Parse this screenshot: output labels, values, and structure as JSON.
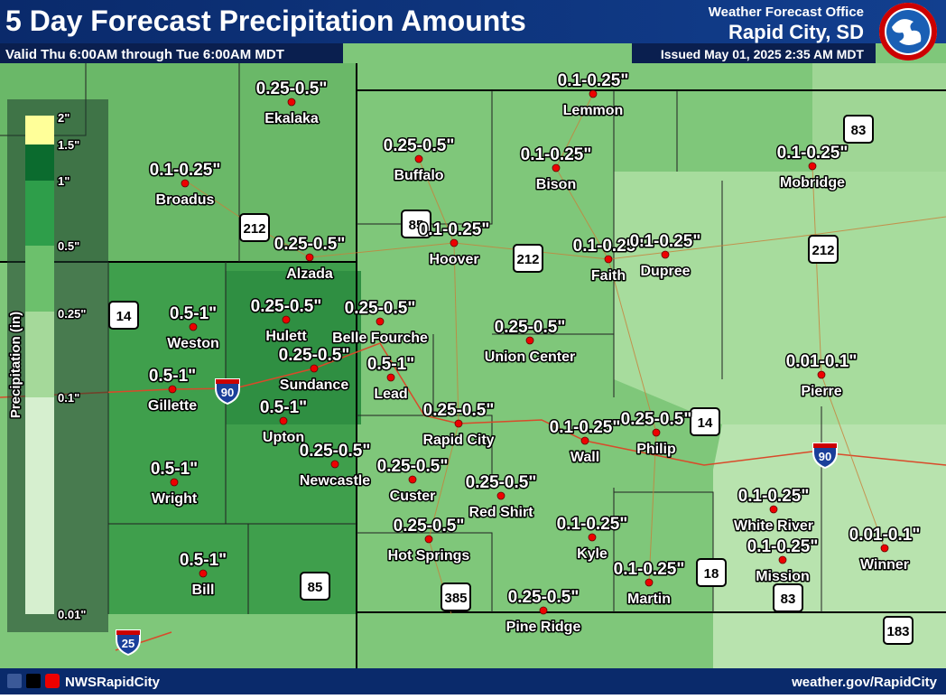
{
  "header": {
    "title": "5 Day Forecast Precipitation Amounts",
    "subtitle": "Valid Thu 6:00AM through Tue 6:00AM MDT",
    "office_line1": "Weather Forecast Office",
    "office_line2": "Rapid City, SD",
    "issued": "Issued May 01, 2025 2:35 AM MDT"
  },
  "legend": {
    "title": "Precipitation (in)",
    "labels": [
      "2\"",
      "1.5\"",
      "1\"",
      "0.5\"",
      "0.25\"",
      "0.1\"",
      "0.01\""
    ]
  },
  "cities": [
    {
      "name": "Ekalaka",
      "amount": "0.25-0.5\""
    },
    {
      "name": "Broadus",
      "amount": "0.1-0.25\""
    },
    {
      "name": "Alzada",
      "amount": "0.25-0.5\""
    },
    {
      "name": "Weston",
      "amount": "0.5-1\""
    },
    {
      "name": "Gillette",
      "amount": "0.5-1\""
    },
    {
      "name": "Hulett",
      "amount": "0.25-0.5\""
    },
    {
      "name": "Belle Fourche",
      "amount": "0.25-0.5\""
    },
    {
      "name": "Sundance",
      "amount": "0.25-0.5\""
    },
    {
      "name": "Lead",
      "amount": "0.5-1\""
    },
    {
      "name": "Upton",
      "amount": "0.5-1\""
    },
    {
      "name": "Newcastle",
      "amount": "0.25-0.5\""
    },
    {
      "name": "Wright",
      "amount": "0.5-1\""
    },
    {
      "name": "Bill",
      "amount": "0.5-1\""
    },
    {
      "name": "Buffalo",
      "amount": "0.25-0.5\""
    },
    {
      "name": "Hoover",
      "amount": "0.1-0.25\""
    },
    {
      "name": "Lemmon",
      "amount": "0.1-0.25\""
    },
    {
      "name": "Bison",
      "amount": "0.1-0.25\""
    },
    {
      "name": "Faith",
      "amount": "0.1-0.25\""
    },
    {
      "name": "Dupree",
      "amount": "0.1-0.25\""
    },
    {
      "name": "Mobridge",
      "amount": "0.1-0.25\""
    },
    {
      "name": "Union Center",
      "amount": "0.25-0.5\""
    },
    {
      "name": "Rapid City",
      "amount": "0.25-0.5\""
    },
    {
      "name": "Custer",
      "amount": "0.25-0.5\""
    },
    {
      "name": "Red Shirt",
      "amount": "0.25-0.5\""
    },
    {
      "name": "Wall",
      "amount": "0.1-0.25\""
    },
    {
      "name": "Philip",
      "amount": "0.25-0.5\""
    },
    {
      "name": "Pierre",
      "amount": "0.01-0.1\""
    },
    {
      "name": "White River",
      "amount": "0.1-0.25\""
    },
    {
      "name": "Mission",
      "amount": "0.1-0.25\""
    },
    {
      "name": "Winner",
      "amount": "0.01-0.1\""
    },
    {
      "name": "Kyle",
      "amount": "0.1-0.25\""
    },
    {
      "name": "Martin",
      "amount": "0.1-0.25\""
    },
    {
      "name": "Hot Springs",
      "amount": "0.25-0.5\""
    },
    {
      "name": "Pine Ridge",
      "amount": "0.25-0.5\""
    }
  ],
  "highways": [
    "212",
    "85",
    "212",
    "83",
    "212",
    "14",
    "90",
    "14",
    "90",
    "85",
    "385",
    "18",
    "83",
    "183",
    "25"
  ],
  "footer": {
    "social": "NWSRapidCity",
    "website": "weather.gov/RapidCity"
  }
}
